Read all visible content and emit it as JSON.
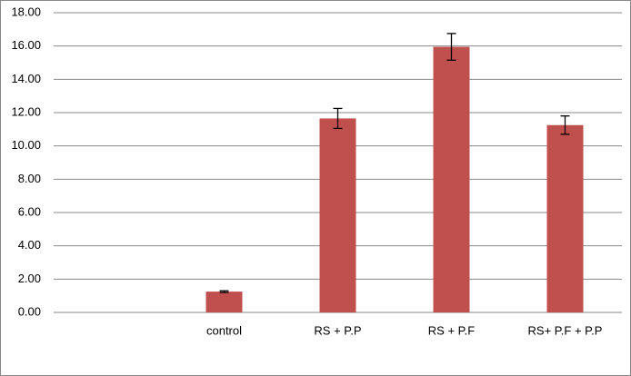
{
  "chart_data": {
    "type": "bar",
    "categories": [
      null,
      "control",
      "RS + P.P",
      "RS + P.F",
      "RS+ P.F + P.P"
    ],
    "values": [
      null,
      1.25,
      11.65,
      15.95,
      11.25
    ],
    "errors": [
      null,
      0.05,
      0.6,
      0.8,
      0.55
    ],
    "color": "#c0504d",
    "ylim": [
      0,
      18
    ],
    "yticks": [
      {
        "value": 0,
        "label": "0.00"
      },
      {
        "value": 2,
        "label": "2.00"
      },
      {
        "value": 4,
        "label": "4.00"
      },
      {
        "value": 6,
        "label": "6.00"
      },
      {
        "value": 8,
        "label": "8.00"
      },
      {
        "value": 10,
        "label": "10.00"
      },
      {
        "value": 12,
        "label": "12.00"
      },
      {
        "value": 14,
        "label": "14.00"
      },
      {
        "value": 16,
        "label": "16.00"
      },
      {
        "value": 18,
        "label": "18.00"
      }
    ],
    "grid": true
  }
}
